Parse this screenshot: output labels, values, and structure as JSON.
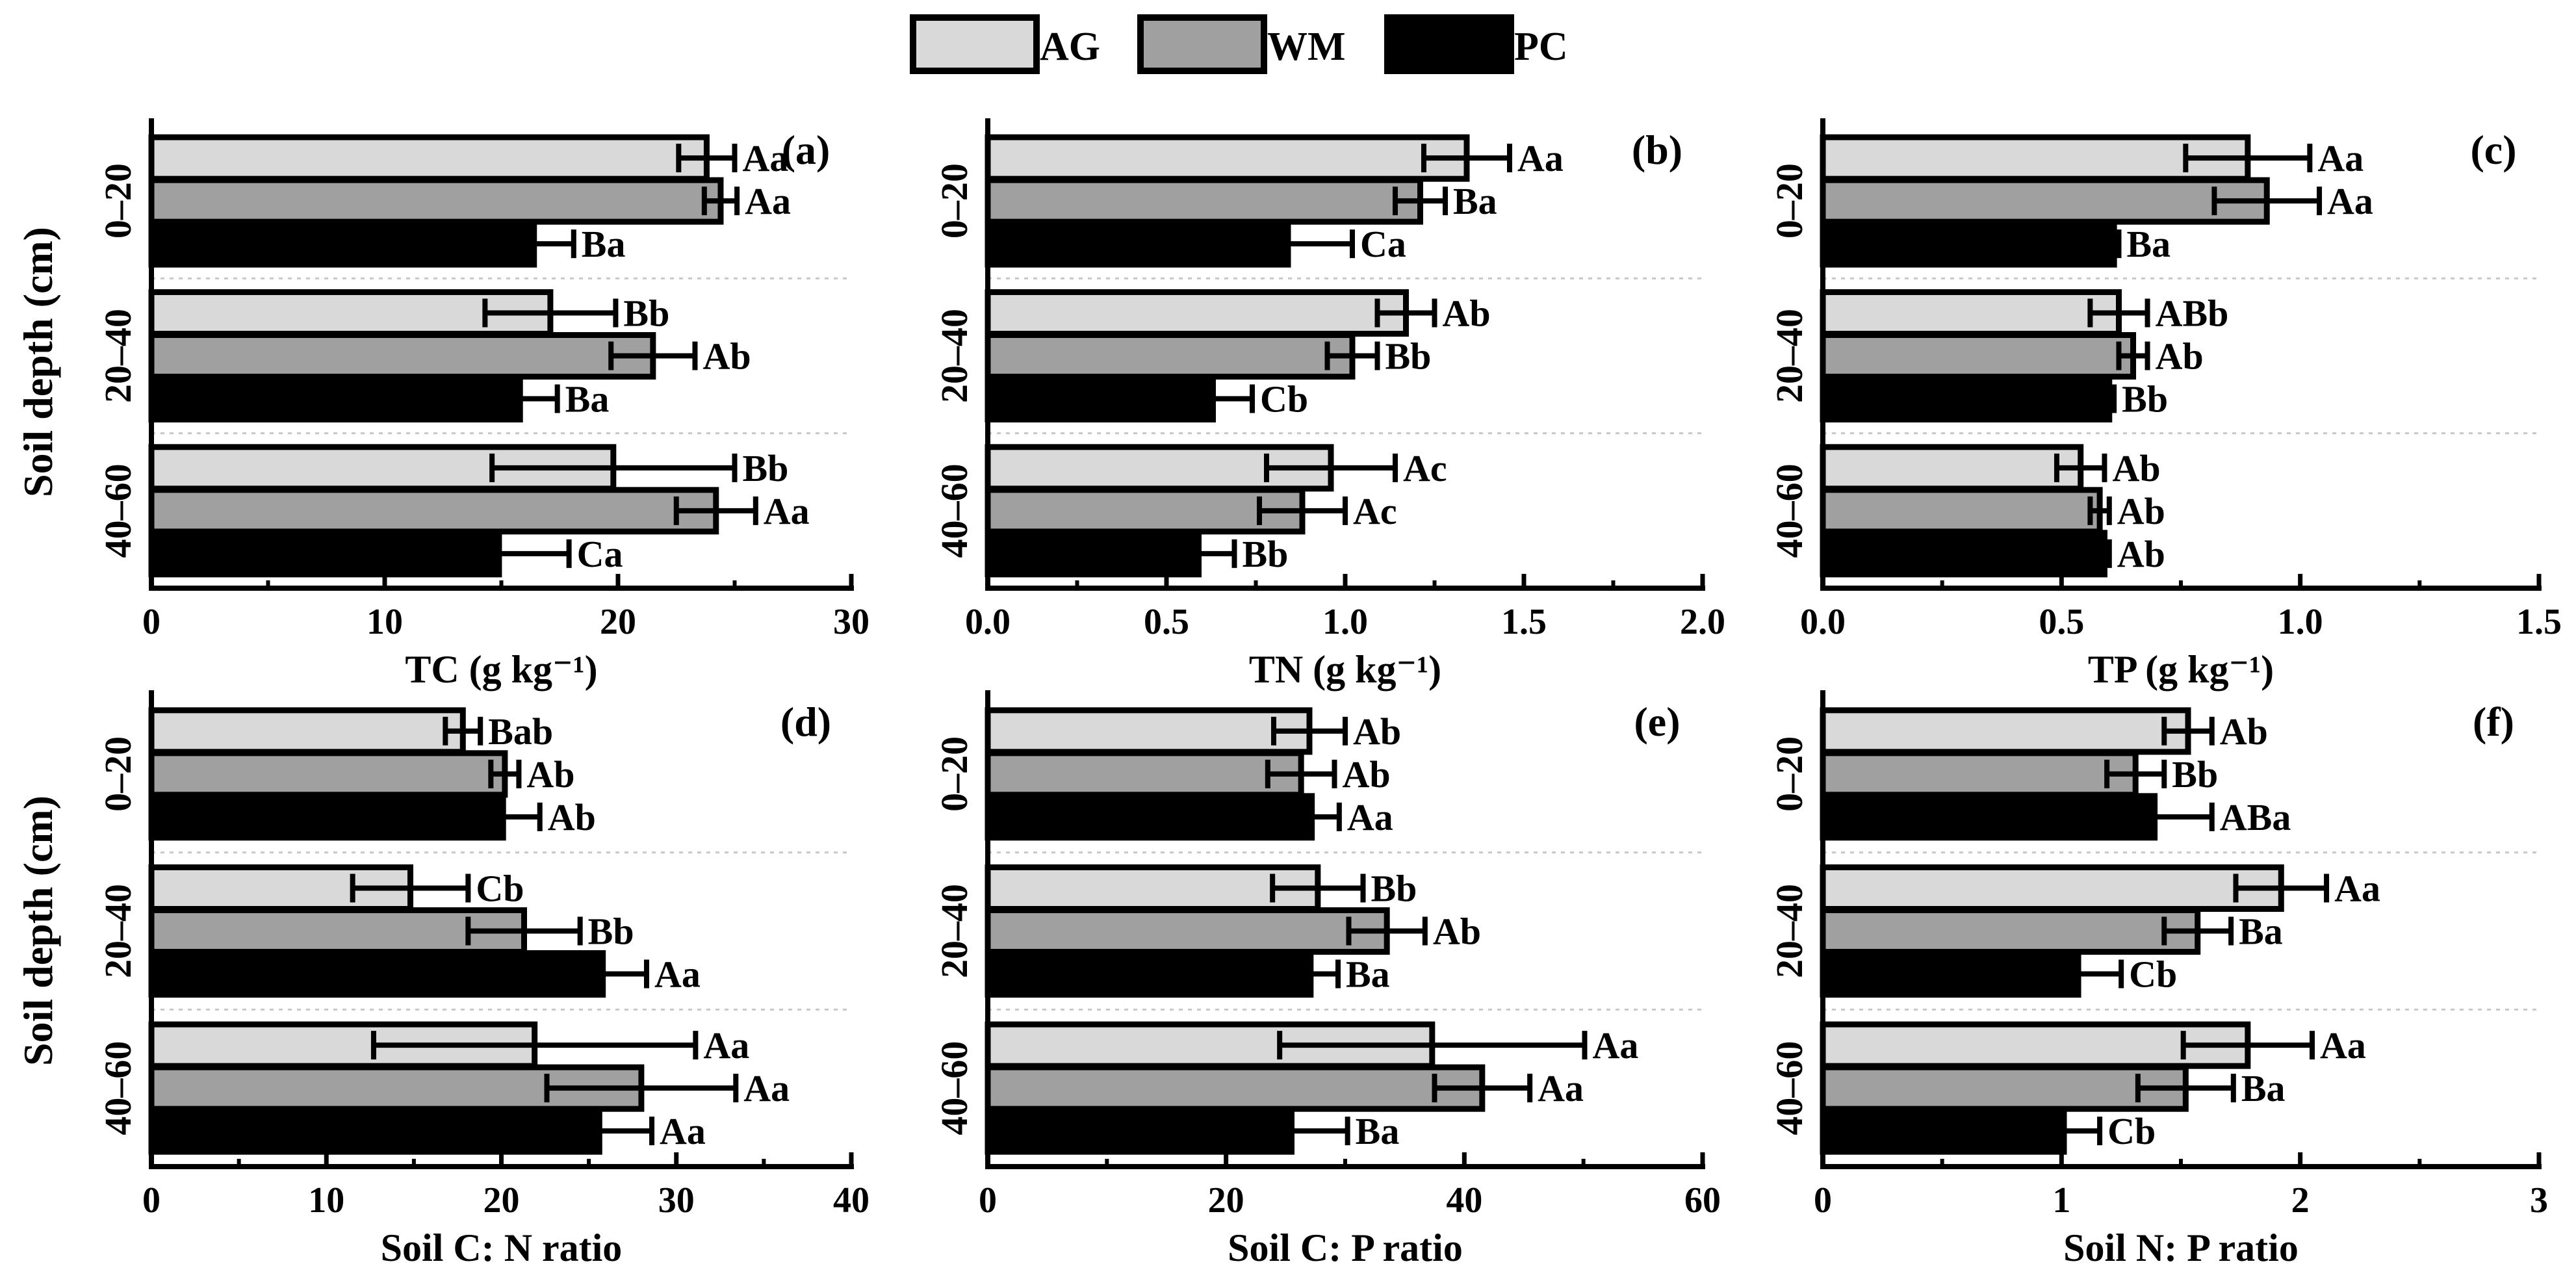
{
  "legend": {
    "items": [
      {
        "label": "AG",
        "color": "#d9d9d9"
      },
      {
        "label": "WM",
        "color": "#a0a0a0"
      },
      {
        "label": "PC",
        "color": "#000000"
      }
    ]
  },
  "y_axis_title": "Soil depth (cm)",
  "depth_labels": [
    "0–20",
    "20–40",
    "40–60"
  ],
  "chart_data": [
    {
      "type": "bar",
      "orientation": "horizontal",
      "panel": "(a)",
      "xlabel": "TC (g kg⁻¹)",
      "xlim": [
        0,
        30
      ],
      "ticks": [
        0,
        10,
        20,
        30
      ],
      "tick_labels": [
        "0",
        "10",
        "20",
        "30"
      ],
      "minor_ticks": [
        5,
        15,
        25
      ],
      "categories": [
        "0–20",
        "20–40",
        "40–60"
      ],
      "series": [
        {
          "name": "AG",
          "values": [
            23.8,
            17.1,
            19.8
          ],
          "errors": [
            1.2,
            2.8,
            5.2
          ],
          "labels": [
            "Aa",
            "Bb",
            "Bb"
          ]
        },
        {
          "name": "WM",
          "values": [
            24.4,
            21.5,
            24.2
          ],
          "errors": [
            0.7,
            1.8,
            1.7
          ],
          "labels": [
            "Aa",
            "Ab",
            "Aa"
          ]
        },
        {
          "name": "PC",
          "values": [
            16.4,
            15.8,
            14.9
          ],
          "errors": [
            1.7,
            1.6,
            3.0
          ],
          "labels": [
            "Ba",
            "Ba",
            "Ca"
          ]
        }
      ]
    },
    {
      "type": "bar",
      "orientation": "horizontal",
      "panel": "(b)",
      "xlabel": "TN (g kg⁻¹)",
      "xlim": [
        0,
        2
      ],
      "ticks": [
        0,
        0.5,
        1,
        1.5,
        2
      ],
      "tick_labels": [
        "0.0",
        "0.5",
        "1.0",
        "1.5",
        "2.0"
      ],
      "minor_ticks": [
        0.25,
        0.75,
        1.25,
        1.75
      ],
      "categories": [
        "0–20",
        "20–40",
        "40–60"
      ],
      "series": [
        {
          "name": "AG",
          "values": [
            1.34,
            1.17,
            0.96
          ],
          "errors": [
            0.12,
            0.08,
            0.18
          ],
          "labels": [
            "Aa",
            "Ab",
            "Ac"
          ]
        },
        {
          "name": "WM",
          "values": [
            1.21,
            1.02,
            0.88
          ],
          "errors": [
            0.07,
            0.07,
            0.12
          ],
          "labels": [
            "Ba",
            "Bb",
            "Ac"
          ]
        },
        {
          "name": "PC",
          "values": [
            0.84,
            0.63,
            0.59
          ],
          "errors": [
            0.18,
            0.11,
            0.1
          ],
          "labels": [
            "Ca",
            "Cb",
            "Bb"
          ]
        }
      ]
    },
    {
      "type": "bar",
      "orientation": "horizontal",
      "panel": "(c)",
      "xlabel": "TP (g kg⁻¹)",
      "xlim": [
        0,
        1.5
      ],
      "ticks": [
        0,
        0.5,
        1,
        1.5
      ],
      "tick_labels": [
        "0.0",
        "0.5",
        "1.0",
        "1.5"
      ],
      "minor_ticks": [
        0.25,
        0.75,
        1.25
      ],
      "categories": [
        "0–20",
        "20–40",
        "40–60"
      ],
      "series": [
        {
          "name": "AG",
          "values": [
            0.89,
            0.62,
            0.54
          ],
          "errors": [
            0.13,
            0.06,
            0.05
          ],
          "labels": [
            "Aa",
            "ABb",
            "Ab"
          ]
        },
        {
          "name": "WM",
          "values": [
            0.93,
            0.65,
            0.58
          ],
          "errors": [
            0.11,
            0.03,
            0.02
          ],
          "labels": [
            "Aa",
            "Ab",
            "Ab"
          ]
        },
        {
          "name": "PC",
          "values": [
            0.61,
            0.6,
            0.59
          ],
          "errors": [
            0.01,
            0.01,
            0.01
          ],
          "labels": [
            "Ba",
            "Bb",
            "Ab"
          ]
        }
      ]
    },
    {
      "type": "bar",
      "orientation": "horizontal",
      "panel": "(d)",
      "xlabel": "Soil C: N ratio",
      "xlim": [
        0,
        40
      ],
      "ticks": [
        0,
        10,
        20,
        30,
        40
      ],
      "tick_labels": [
        "0",
        "10",
        "20",
        "30",
        "40"
      ],
      "minor_ticks": [
        5,
        15,
        25,
        35
      ],
      "categories": [
        "0–20",
        "20–40",
        "40–60"
      ],
      "series": [
        {
          "name": "AG",
          "values": [
            17.8,
            14.8,
            21.9
          ],
          "errors": [
            1.0,
            3.3,
            9.2
          ],
          "labels": [
            "Bab",
            "Cb",
            "Aa"
          ]
        },
        {
          "name": "WM",
          "values": [
            20.2,
            21.3,
            28.0
          ],
          "errors": [
            0.8,
            3.2,
            5.4
          ],
          "labels": [
            "Ab",
            "Bb",
            "Aa"
          ]
        },
        {
          "name": "PC",
          "values": [
            20.1,
            25.8,
            25.6
          ],
          "errors": [
            2.1,
            2.5,
            3.0
          ],
          "labels": [
            "Ab",
            "Aa",
            "Aa"
          ]
        }
      ]
    },
    {
      "type": "bar",
      "orientation": "horizontal",
      "panel": "(e)",
      "xlabel": "Soil C: P ratio",
      "xlim": [
        0,
        60
      ],
      "ticks": [
        0,
        20,
        40,
        60
      ],
      "tick_labels": [
        "0",
        "20",
        "40",
        "60"
      ],
      "minor_ticks": [
        10,
        30,
        50
      ],
      "categories": [
        "0–20",
        "20–40",
        "40–60"
      ],
      "series": [
        {
          "name": "AG",
          "values": [
            27.0,
            27.7,
            37.3
          ],
          "errors": [
            3.0,
            3.8,
            12.8
          ],
          "labels": [
            "Ab",
            "Bb",
            "Aa"
          ]
        },
        {
          "name": "WM",
          "values": [
            26.3,
            33.5,
            41.5
          ],
          "errors": [
            2.8,
            3.2,
            4.0
          ],
          "labels": [
            "Ab",
            "Ab",
            "Aa"
          ]
        },
        {
          "name": "PC",
          "values": [
            27.2,
            27.1,
            25.5
          ],
          "errors": [
            2.3,
            2.3,
            4.7
          ],
          "labels": [
            "Aa",
            "Ba",
            "Ba"
          ]
        }
      ]
    },
    {
      "type": "bar",
      "orientation": "horizontal",
      "panel": "(f)",
      "xlabel": "Soil N: P ratio",
      "xlim": [
        0,
        3
      ],
      "ticks": [
        0,
        1,
        2,
        3
      ],
      "tick_labels": [
        "0",
        "1",
        "2",
        "3"
      ],
      "minor_ticks": [
        0.5,
        1.5,
        2.5
      ],
      "categories": [
        "0–20",
        "20–40",
        "40–60"
      ],
      "series": [
        {
          "name": "AG",
          "values": [
            1.53,
            1.92,
            1.78
          ],
          "errors": [
            0.1,
            0.19,
            0.27
          ],
          "labels": [
            "Ab",
            "Aa",
            "Aa"
          ]
        },
        {
          "name": "WM",
          "values": [
            1.31,
            1.57,
            1.52
          ],
          "errors": [
            0.12,
            0.14,
            0.2
          ],
          "labels": [
            "Bb",
            "Ba",
            "Ba"
          ]
        },
        {
          "name": "PC",
          "values": [
            1.39,
            1.07,
            1.01
          ],
          "errors": [
            0.24,
            0.18,
            0.15
          ],
          "labels": [
            "ABa",
            "Cb",
            "Cb"
          ]
        }
      ]
    }
  ]
}
